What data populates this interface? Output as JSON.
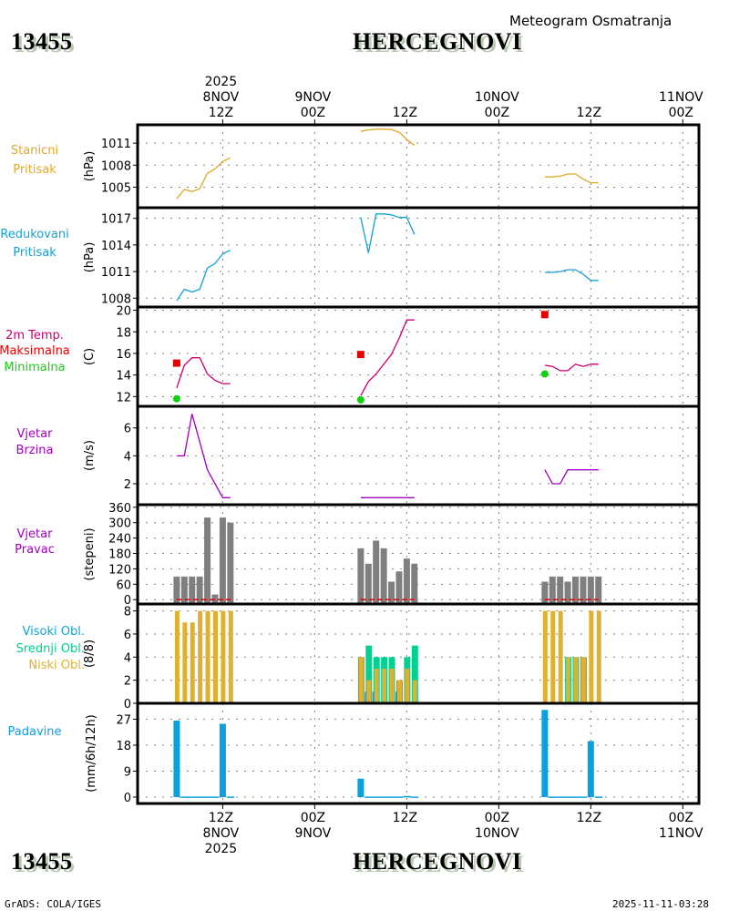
{
  "header": {
    "station_id": "13455",
    "station_name": "HERCEGNOVI",
    "product_title": "Meteogram Osmatranja"
  },
  "footer": {
    "credit": "GrADS: COLA/IGES",
    "timestamp": "2025-11-11-03:28"
  },
  "colors": {
    "station_pressure": "#e0a828",
    "reduced_pressure": "#14a0d2",
    "temperature": "#c8006e",
    "max_temp": "#e80000",
    "min_temp": "#10d010",
    "wind": "#a000c0",
    "wind_dir_bars": "#7f7f7f",
    "wind_dir_ref": "#e00000",
    "high_cloud": "#10a4d8",
    "mid_cloud": "#00d090",
    "low_cloud": "#e2b030",
    "precip": "#0aa0e0",
    "grid": "#808080"
  },
  "chart_data": {
    "type": "line",
    "title": "Meteogram Osmatranja",
    "x_axis": {
      "unit": "hours since 8NOV2025 00Z",
      "range": [
        0.9,
        74.1
      ],
      "ticks_top": [
        {
          "hour": 12,
          "lines": [
            "2025",
            "8NOV",
            "12Z"
          ]
        },
        {
          "hour": 24,
          "lines": [
            "9NOV",
            "00Z"
          ]
        },
        {
          "hour": 36,
          "lines": [
            "12Z"
          ]
        },
        {
          "hour": 48,
          "lines": [
            "10NOV",
            "00Z"
          ]
        },
        {
          "hour": 60,
          "lines": [
            "12Z"
          ]
        },
        {
          "hour": 72,
          "lines": [
            "11NOV",
            "00Z"
          ]
        }
      ],
      "ticks_bottom": [
        {
          "hour": 12,
          "lines": [
            "12Z",
            "8NOV",
            "2025"
          ]
        },
        {
          "hour": 24,
          "lines": [
            "00Z",
            "9NOV"
          ]
        },
        {
          "hour": 36,
          "lines": [
            "12Z"
          ]
        },
        {
          "hour": 48,
          "lines": [
            "00Z",
            "10NOV"
          ]
        },
        {
          "hour": 60,
          "lines": [
            "12Z"
          ]
        },
        {
          "hour": 72,
          "lines": [
            "00Z",
            "11NOV"
          ]
        }
      ],
      "grid": true
    },
    "hours": [
      [
        6,
        7,
        8,
        9,
        10,
        11,
        12,
        13
      ],
      [
        30,
        31,
        32,
        33,
        34,
        35,
        36,
        37
      ],
      [
        54,
        55,
        56,
        57,
        58,
        59,
        60,
        61
      ]
    ],
    "panels": [
      {
        "id": "station_pressure",
        "type": "line",
        "labels": [
          {
            "text": "Stanicni",
            "color": "#e0a828"
          },
          {
            "text": "Pritisak",
            "color": "#e0a828"
          }
        ],
        "ylabel": "(hPa)",
        "ylim": [
          1002.2,
          1013.5
        ],
        "yticks": [
          1005,
          1008,
          1011
        ],
        "series": [
          {
            "name": "Stanicni Pritisak",
            "color": "#e0a828",
            "segments": [
              [
                1003.4,
                1004.7,
                1004.4,
                1004.8,
                1006.9,
                1007.5,
                1008.5,
                1009.0
              ],
              [
                1012.6,
                1012.8,
                1012.9,
                1012.9,
                1012.85,
                1012.5,
                1011.5,
                1010.7
              ],
              [
                1006.4,
                1006.4,
                1006.5,
                1006.8,
                1006.8,
                1006.1,
                1005.6,
                1005.6
              ]
            ]
          }
        ]
      },
      {
        "id": "reduced_pressure",
        "type": "line",
        "labels": [
          {
            "text": "Redukovani",
            "color": "#14a0d2"
          },
          {
            "text": "Pritisak",
            "color": "#14a0d2"
          }
        ],
        "ylabel": "(hPa)",
        "ylim": [
          1007.0,
          1018.2
        ],
        "yticks": [
          1008,
          1011,
          1014,
          1017
        ],
        "series": [
          {
            "name": "Redukovani Pritisak",
            "color": "#14a0d2",
            "segments": [
              [
                1007.7,
                1009.0,
                1008.7,
                1009.0,
                1011.4,
                1011.9,
                1013.0,
                1013.4
              ],
              [
                1017.1,
                1013.1,
                1017.5,
                1017.5,
                1017.4,
                1017.1,
                1017.1,
                1015.2
              ],
              [
                1010.9,
                1010.9,
                1011.0,
                1011.2,
                1011.2,
                1010.7,
                1010.0,
                1010.0
              ]
            ]
          }
        ]
      },
      {
        "id": "temperature",
        "type": "line",
        "labels": [
          {
            "text": "2m Temp.",
            "color": "#c8006e"
          },
          {
            "text": "Maksimalna",
            "color": "#e80000"
          },
          {
            "text": "Minimalna",
            "color": "#10d010"
          }
        ],
        "ylabel": "(C)",
        "ylim": [
          11.1,
          20.3
        ],
        "yticks": [
          12,
          14,
          16,
          18,
          20
        ],
        "series": [
          {
            "name": "2m Temp.",
            "color": "#c8006e",
            "segments": [
              [
                12.8,
                14.9,
                15.6,
                15.6,
                14.1,
                13.5,
                13.2,
                13.2
              ],
              [
                12.1,
                13.4,
                14.1,
                15.0,
                15.9,
                17.4,
                19.1,
                19.1
              ],
              [
                14.9,
                14.8,
                14.4,
                14.4,
                15.0,
                14.8,
                15.0,
                15.0
              ]
            ]
          }
        ],
        "markers": [
          {
            "name": "Maksimalna",
            "shape": "square",
            "color": "#e80000",
            "points": [
              {
                "hour": 6,
                "value": 15.1
              },
              {
                "hour": 30,
                "value": 15.9
              },
              {
                "hour": 54,
                "value": 19.6
              }
            ]
          },
          {
            "name": "Minimalna",
            "shape": "circle",
            "color": "#10d010",
            "points": [
              {
                "hour": 6,
                "value": 11.8
              },
              {
                "hour": 30,
                "value": 11.7
              },
              {
                "hour": 54,
                "value": 14.1
              }
            ]
          }
        ]
      },
      {
        "id": "wind_speed",
        "type": "line",
        "labels": [
          {
            "text": "Vjetar",
            "color": "#a000c0"
          },
          {
            "text": "Brzina",
            "color": "#a000c0"
          }
        ],
        "ylabel": "(m/s)",
        "ylim": [
          0.5,
          7.55
        ],
        "yticks": [
          2,
          4,
          6
        ],
        "series": [
          {
            "name": "Vjetar Brzina",
            "color": "#a000c0",
            "segments": [
              [
                4,
                4,
                7,
                5,
                3,
                2,
                1,
                1
              ],
              [
                1,
                1,
                1,
                1,
                1,
                1,
                1,
                1
              ],
              [
                3,
                2,
                2,
                3,
                3,
                3,
                3,
                3
              ]
            ]
          }
        ]
      },
      {
        "id": "wind_direction",
        "type": "bar",
        "labels": [
          {
            "text": "Vjetar",
            "color": "#a000c0"
          },
          {
            "text": "Pravac",
            "color": "#a000c0"
          }
        ],
        "ylabel": "(stepeni)",
        "ylim": [
          -17,
          370
        ],
        "yticks": [
          0,
          60,
          120,
          180,
          240,
          300,
          360
        ],
        "series": [
          {
            "name": "Vjetar Pravac",
            "color": "#7f7f7f",
            "segments": [
              [
                90,
                90,
                90,
                90,
                320,
                20,
                320,
                300
              ],
              [
                200,
                140,
                230,
                200,
                70,
                110,
                160,
                140
              ],
              [
                70,
                90,
                90,
                70,
                90,
                90,
                90,
                90
              ]
            ]
          }
        ],
        "reference_line": {
          "value": 0,
          "color": "#e00000",
          "style": "dashed"
        }
      },
      {
        "id": "clouds",
        "type": "bar",
        "labels": [
          {
            "text": "Visoki Obl.",
            "color": "#10a4d8"
          },
          {
            "text": "Srednji Obl.",
            "color": "#00d090"
          },
          {
            "text": "Niski Obl.",
            "color": "#e2b030"
          }
        ],
        "ylabel": "(8/8)",
        "ylim": [
          -0.0,
          8.6
        ],
        "yticks": [
          0,
          2,
          4,
          6,
          8
        ],
        "series": [
          {
            "name": "Visoki Obl.",
            "color": "#10a4d8",
            "segments": [
              [
                0,
                0,
                0,
                0,
                0,
                0,
                0,
                0
              ],
              [
                0,
                1,
                1,
                0,
                0,
                1,
                0,
                0
              ],
              [
                0,
                0,
                0,
                0,
                0,
                0,
                0,
                0
              ]
            ]
          },
          {
            "name": "Srednji Obl.",
            "color": "#00d090",
            "segments": [
              [
                0,
                0,
                0,
                0,
                0,
                0,
                0,
                0
              ],
              [
                4,
                5,
                4,
                4,
                4,
                2,
                4,
                5
              ],
              [
                0,
                0,
                0,
                4,
                4,
                4,
                0,
                0
              ]
            ]
          },
          {
            "name": "Niski Obl.",
            "color": "#e2b030",
            "segments": [
              [
                8,
                7,
                7,
                8,
                8,
                8,
                8,
                8
              ],
              [
                4,
                2,
                3,
                3,
                3,
                2,
                3,
                2
              ],
              [
                8,
                8,
                8,
                4,
                4,
                4,
                8,
                8
              ]
            ]
          }
        ]
      },
      {
        "id": "precipitation",
        "type": "bar",
        "labels": [
          {
            "text": "Padavine",
            "color": "#0aa0e0"
          }
        ],
        "ylabel": "(mm/6h/12h)",
        "ylim": [
          -2.2,
          32.5
        ],
        "yticks": [
          0,
          9,
          18,
          27
        ],
        "series": [
          {
            "name": "Padavine",
            "color": "#0aa0e0",
            "segments": [
              [
                26.5,
                0.2,
                0.2,
                0.2,
                0.2,
                0.2,
                25.4,
                0.2
              ],
              [
                6.4,
                0.2,
                0.2,
                0.2,
                0.2,
                0.2,
                0.4,
                0.2
              ],
              [
                30.2,
                0.2,
                0.2,
                0.2,
                0.2,
                0.2,
                19.4,
                0.2
              ]
            ]
          }
        ]
      }
    ]
  }
}
